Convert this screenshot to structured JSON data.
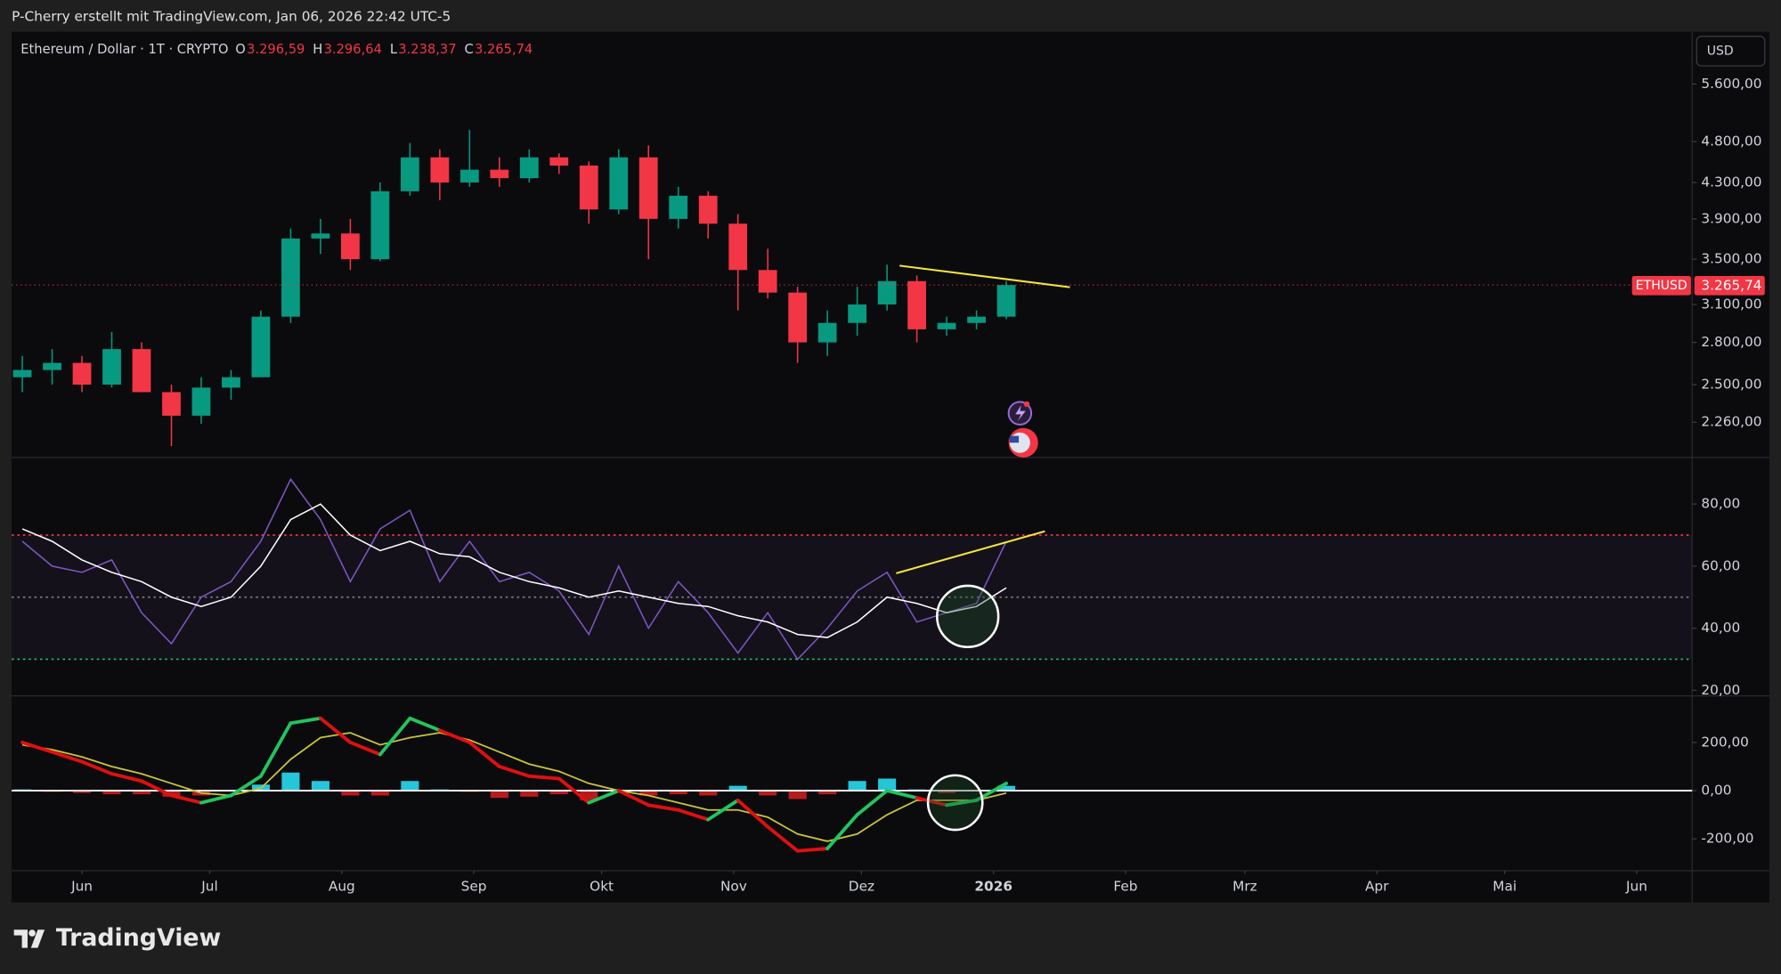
{
  "header": {
    "attribution": "P-Cherry erstellt mit TradingView.com, Jan 06, 2026 22:42 UTC-5",
    "symbol": "Ethereum / Dollar · 1T · CRYPTO",
    "ohlc": [
      {
        "key": "O",
        "value": 3296.59,
        "label": "3.296,59"
      },
      {
        "key": "H",
        "value": 3296.64,
        "label": "3.296,64"
      },
      {
        "key": "L",
        "value": 3238.37,
        "label": "3.238,37"
      },
      {
        "key": "C",
        "value": 3265.74,
        "label": "3.265,74"
      }
    ],
    "currency": "USD",
    "ticker_tag": "ETHUSD"
  },
  "chart_data": [
    {
      "type": "candlestick",
      "log_scale": true,
      "x": [
        -14,
        -7,
        0,
        7,
        14,
        21,
        28,
        35,
        42,
        49,
        56,
        63,
        70,
        77,
        84,
        91,
        98,
        105,
        112,
        119,
        126,
        133,
        140,
        147,
        154,
        161,
        168,
        175,
        182,
        189,
        196,
        203,
        210,
        217
      ],
      "open": [
        2550,
        2600,
        2650,
        2500,
        2750,
        2450,
        2300,
        2480,
        2550,
        3000,
        3700,
        3750,
        3500,
        4200,
        4600,
        4300,
        4450,
        4350,
        4600,
        4500,
        4000,
        4600,
        3900,
        4150,
        3850,
        3400,
        3200,
        2800,
        2950,
        3100,
        3300,
        2900,
        2950,
        3000
      ],
      "high": [
        2700,
        2750,
        2700,
        2880,
        2800,
        2500,
        2550,
        2600,
        3050,
        3800,
        3900,
        3900,
        4300,
        4780,
        4700,
        4950,
        4600,
        4700,
        4650,
        4550,
        4700,
        4750,
        4250,
        4200,
        3950,
        3600,
        3250,
        3050,
        3250,
        3450,
        3350,
        3000,
        3050,
        3300
      ],
      "low": [
        2450,
        2500,
        2450,
        2480,
        2450,
        2120,
        2250,
        2400,
        2550,
        2950,
        3550,
        3400,
        3480,
        4150,
        4100,
        4250,
        4250,
        4300,
        4400,
        3850,
        3950,
        3500,
        3800,
        3700,
        3050,
        3150,
        2650,
        2700,
        2850,
        3050,
        2800,
        2850,
        2900,
        2980
      ],
      "close": [
        2600,
        2650,
        2500,
        2750,
        2450,
        2300,
        2480,
        2550,
        3000,
        3700,
        3750,
        3500,
        4200,
        4600,
        4300,
        4450,
        4350,
        4600,
        4500,
        4000,
        4600,
        3900,
        4150,
        3850,
        3400,
        3200,
        2800,
        2950,
        3100,
        3300,
        2900,
        2950,
        3000,
        3265.74
      ],
      "up_color": "#089981",
      "down_color": "#f23645",
      "current_price": {
        "value": 3265.74,
        "label": "3.265,74"
      },
      "ylim": [
        2056,
        6443
      ],
      "yticks": [
        {
          "value": 5600,
          "label": "5.600,00"
        },
        {
          "value": 4800,
          "label": "4.800,00"
        },
        {
          "value": 4300,
          "label": "4.300,00"
        },
        {
          "value": 3900,
          "label": "3.900,00"
        },
        {
          "value": 3500,
          "label": "3.500,00"
        },
        {
          "value": 3100,
          "label": "3.100,00"
        },
        {
          "value": 2800,
          "label": "2.800,00"
        },
        {
          "value": 2500,
          "label": "2.500,00"
        },
        {
          "value": 2260,
          "label": "2.260,00"
        }
      ],
      "xlim": [
        -16.5,
        378
      ],
      "xticks": [
        {
          "value": 0,
          "label": "Jun"
        },
        {
          "value": 30,
          "label": "Jul"
        },
        {
          "value": 61,
          "label": "Aug"
        },
        {
          "value": 92,
          "label": "Sep"
        },
        {
          "value": 122,
          "label": "Okt"
        },
        {
          "value": 153,
          "label": "Nov"
        },
        {
          "value": 183,
          "label": "Dez"
        },
        {
          "value": 214,
          "label": "2026"
        },
        {
          "value": 245,
          "label": "Feb"
        },
        {
          "value": 273,
          "label": "Mrz"
        },
        {
          "value": 304,
          "label": "Apr"
        },
        {
          "value": 334,
          "label": "Mai"
        },
        {
          "value": 365,
          "label": "Jun"
        }
      ]
    },
    {
      "type": "line",
      "series": [
        {
          "color": "#7e57c2",
          "values": [
            68,
            60,
            58,
            62,
            45,
            35,
            50,
            55,
            68,
            88,
            75,
            55,
            72,
            78,
            55,
            68,
            55,
            58,
            52,
            38,
            60,
            40,
            55,
            45,
            32,
            45,
            30,
            40,
            52,
            58,
            42,
            45,
            48,
            68
          ]
        },
        {
          "color": "#ffffff",
          "values": [
            72,
            68,
            62,
            58,
            55,
            50,
            47,
            50,
            60,
            75,
            80,
            70,
            65,
            68,
            64,
            63,
            58,
            55,
            53,
            50,
            52,
            50,
            48,
            47,
            44,
            42,
            38,
            37,
            42,
            50,
            48,
            45,
            47,
            53
          ]
        }
      ],
      "levels": [
        {
          "value": 70,
          "color": "#f23645"
        },
        {
          "value": 50,
          "color": "#787b86"
        },
        {
          "value": 30,
          "color": "#22c55e"
        }
      ],
      "ylim": [
        18.2,
        95
      ],
      "yticks": [
        {
          "value": 80,
          "label": "80,00"
        },
        {
          "value": 60,
          "label": "60,00"
        },
        {
          "value": 40,
          "label": "40,00"
        },
        {
          "value": 20,
          "label": "20,00"
        }
      ]
    },
    {
      "type": "macd",
      "series": [
        {
          "color": "#22c55e",
          "values": [
            200,
            160,
            120,
            70,
            40,
            -20,
            -50,
            -20,
            60,
            280,
            300,
            200,
            150,
            300,
            250,
            200,
            100,
            60,
            50,
            -50,
            0,
            -60,
            -80,
            -120,
            -40,
            -150,
            -250,
            -240,
            -100,
            0,
            -30,
            -60,
            -40,
            30
          ]
        },
        {
          "color": "#c9c43a",
          "values": [
            190,
            170,
            140,
            100,
            70,
            30,
            -10,
            -20,
            10,
            130,
            220,
            240,
            190,
            220,
            240,
            210,
            160,
            110,
            80,
            30,
            0,
            -20,
            -50,
            -80,
            -80,
            -110,
            -180,
            -210,
            -180,
            -100,
            -40,
            -40,
            -40,
            -10
          ]
        }
      ],
      "below_color": "#e01010",
      "histogram": [
        5,
        -5,
        -10,
        -15,
        -15,
        -25,
        -20,
        0,
        25,
        75,
        40,
        -20,
        -20,
        40,
        5,
        -5,
        -30,
        -25,
        -15,
        -40,
        0,
        -20,
        -15,
        -20,
        20,
        -20,
        -35,
        -15,
        40,
        50,
        5,
        -10,
        0,
        20
      ],
      "histogram_colors": [
        "#26c6da",
        "#b71c1c"
      ],
      "zero_line": true,
      "ylim": [
        -332,
        393
      ],
      "yticks": [
        {
          "value": 200,
          "label": "200,00"
        },
        {
          "value": 0,
          "label": "0,00"
        },
        {
          "value": -200,
          "label": "-200,00"
        }
      ]
    }
  ],
  "branding": "TradingView"
}
